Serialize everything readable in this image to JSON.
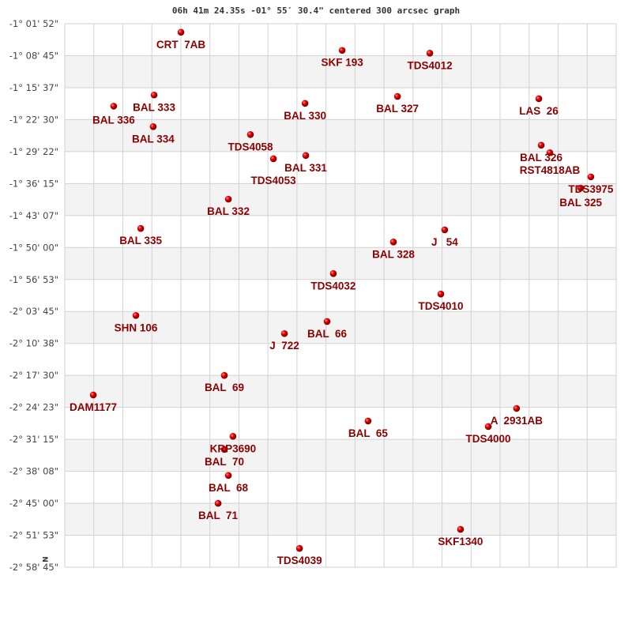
{
  "chart_data": {
    "type": "scatter",
    "title": "06h 41m 24.35s -01° 55′ 30.4\" centered 300 arcsec graph",
    "north_marker": "N",
    "x_range": [
      0,
      300
    ],
    "x_divisions": 19,
    "y_range_arcmin": [
      -61.867,
      -178.75
    ],
    "y_step_arcmin": 6.875,
    "y_ticks": [
      "-1° 01' 52\"",
      "-1° 08' 45\"",
      "-1° 15' 37\"",
      "-1° 22' 30\"",
      "-1° 29' 22\"",
      "-1° 36' 15\"",
      "-1° 43' 07\"",
      "-1° 50' 00\"",
      "-1° 56' 53\"",
      "-2° 03' 45\"",
      "-2° 10' 38\"",
      "-2° 17' 30\"",
      "-2° 24' 23\"",
      "-2° 31' 15\"",
      "-2° 38' 08\"",
      "-2° 45' 00\"",
      "-2° 51' 53\"",
      "-2° 58' 45\""
    ],
    "grid": true,
    "colors": {
      "label": "#8b0000",
      "point": "#e00000",
      "grid": "#d2d2d2",
      "band": "#f3f3f3"
    },
    "points": [
      {
        "name": "CRT  7AB",
        "x": 63.2,
        "dec": -63.7
      },
      {
        "name": "SKF 193",
        "x": 150.9,
        "dec": -67.6
      },
      {
        "name": "TDS4012",
        "x": 198.6,
        "dec": -68.2
      },
      {
        "name": "BAL 333",
        "x": 48.6,
        "dec": -77.2
      },
      {
        "name": "BAL 336",
        "x": 26.6,
        "dec": -79.6
      },
      {
        "name": "BAL 330",
        "x": 130.7,
        "dec": -79.0
      },
      {
        "name": "BAL 327",
        "x": 181.0,
        "dec": -77.5
      },
      {
        "name": "LAS  26",
        "x": 257.9,
        "dec": -78.0
      },
      {
        "name": "BAL 334",
        "x": 48.1,
        "dec": -84.0
      },
      {
        "name": "TDS4058",
        "x": 101.0,
        "dec": -85.7
      },
      {
        "name": "TDS4053",
        "x": 113.5,
        "dec": -90.9
      },
      {
        "name": "BAL 331",
        "x": 131.1,
        "dec": -90.2
      },
      {
        "name": "BAL 326",
        "x": 259.2,
        "dec": -88.0
      },
      {
        "name": "RST4818AB",
        "x": 263.9,
        "dec": -89.6
      },
      {
        "name": "TDS3975",
        "x": 286.2,
        "dec": -94.8
      },
      {
        "name": "BAL 325",
        "x": 280.7,
        "dec": -97.2
      },
      {
        "name": "BAL 332",
        "x": 89.0,
        "dec": -99.6
      },
      {
        "name": "BAL 335",
        "x": 41.3,
        "dec": -105.9
      },
      {
        "name": "BAL 328",
        "x": 178.8,
        "dec": -108.8
      },
      {
        "name": "J   54",
        "x": 206.7,
        "dec": -106.2
      },
      {
        "name": "TDS4032",
        "x": 146.1,
        "dec": -115.6
      },
      {
        "name": "TDS4010",
        "x": 204.6,
        "dec": -120.0
      },
      {
        "name": "SHN 106",
        "x": 38.7,
        "dec": -124.6
      },
      {
        "name": "BAL  66",
        "x": 142.7,
        "dec": -125.9
      },
      {
        "name": "J  722",
        "x": 119.5,
        "dec": -128.5
      },
      {
        "name": "BAL  69",
        "x": 86.8,
        "dec": -137.5
      },
      {
        "name": "DAM1177",
        "x": 15.5,
        "dec": -141.7
      },
      {
        "name": "A  2931AB",
        "x": 245.8,
        "dec": -144.6
      },
      {
        "name": "TDS4000",
        "x": 230.4,
        "dec": -148.5
      },
      {
        "name": "BAL  65",
        "x": 165.0,
        "dec": -147.3
      },
      {
        "name": "KRP3690",
        "x": 91.5,
        "dec": -150.6
      },
      {
        "name": "BAL  70",
        "x": 86.8,
        "dec": -153.4
      },
      {
        "name": "BAL  68",
        "x": 89.0,
        "dec": -159.0
      },
      {
        "name": "BAL  71",
        "x": 83.4,
        "dec": -165.0
      },
      {
        "name": "SKF1340",
        "x": 215.3,
        "dec": -170.6
      },
      {
        "name": "TDS4039",
        "x": 127.7,
        "dec": -174.7
      }
    ]
  }
}
